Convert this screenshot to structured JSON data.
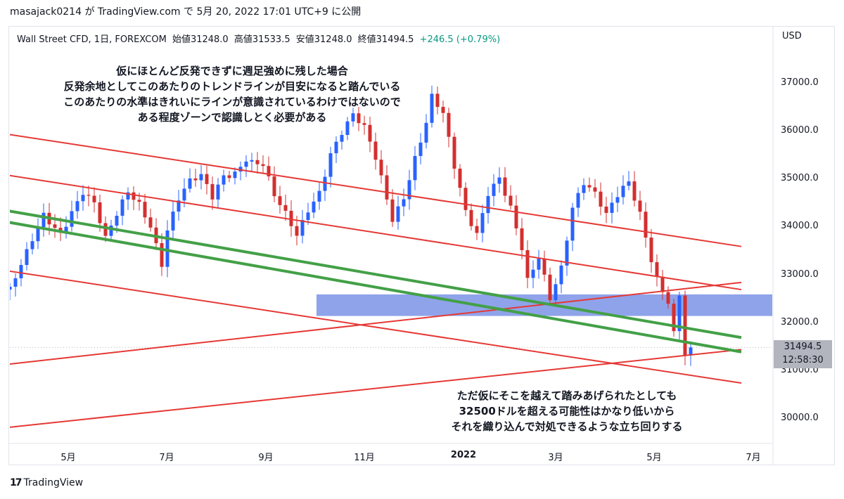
{
  "header": {
    "publish_text": "masajack0214 が TradingView.com で 5月 20, 2022 17:01 UTC+9 に公開"
  },
  "symbol": {
    "name": "Wall Street CFD, 1日, FOREXCOM",
    "open": "始値31248.0",
    "high": "高値31533.5",
    "low": "安値31248.0",
    "close": "終値31494.5",
    "change": "+246.5 (+0.79%)"
  },
  "price_axis": {
    "currency": "USD"
  },
  "last_price": {
    "price": "31494.5",
    "countdown": "12:58:30"
  },
  "annotations": {
    "top": [
      "仮にほとんど反発できずに週足強めに残した場合",
      "反発余地としてこのあたりのトレンドラインが目安になると踏んでいる",
      "このあたりの水準はきれいにラインが意識されているわけではないので",
      "ある程度ゾーンで認識しとく必要がある"
    ],
    "bottom": [
      "ただ仮にそこを越えて踏みあげられたとしても",
      "32500ドルを超える可能性はかなり低いから",
      "それを織り込んで対処できるような立ち回りする"
    ]
  },
  "branding": {
    "logo_text": "TradingView",
    "logo_mark": "17"
  },
  "colors": {
    "up": "#2962ff",
    "down": "#d32f2f",
    "trend_red": "#e53935",
    "trend_green": "#43a047",
    "zone": "#7b93e6"
  },
  "chart_data": {
    "type": "candlestick",
    "x_ticks": [
      "5月",
      "7月",
      "9月",
      "11月",
      "2022",
      "3月",
      "5月",
      "7月"
    ],
    "y_ticks": [
      37000.0,
      36000.0,
      35000.0,
      34000.0,
      33000.0,
      32000.0,
      31000.0,
      30000.0
    ],
    "y_tick_labels": [
      "37000.0",
      "36000.0",
      "35000.0",
      "34000.0",
      "33000.0",
      "32000.0",
      "31000.0",
      "30000.0"
    ],
    "ylim": [
      29600,
      38100
    ],
    "zone": {
      "from": 32150,
      "to": 32600
    },
    "close_path": [
      [
        0,
        32700
      ],
      [
        3,
        33400
      ],
      [
        6,
        34200
      ],
      [
        9,
        33900
      ],
      [
        11,
        34400
      ],
      [
        13,
        34800
      ],
      [
        15,
        34500
      ],
      [
        17,
        33700
      ],
      [
        19,
        34200
      ],
      [
        21,
        34700
      ],
      [
        23,
        34500
      ],
      [
        25,
        34100
      ],
      [
        27,
        33300
      ],
      [
        28,
        34000
      ],
      [
        30,
        34600
      ],
      [
        32,
        34900
      ],
      [
        34,
        35000
      ],
      [
        36,
        34600
      ],
      [
        38,
        35100
      ],
      [
        40,
        35200
      ],
      [
        42,
        35500
      ],
      [
        43,
        35400
      ],
      [
        45,
        35300
      ],
      [
        47,
        34600
      ],
      [
        49,
        34200
      ],
      [
        51,
        33800
      ],
      [
        53,
        34400
      ],
      [
        55,
        34800
      ],
      [
        57,
        35600
      ],
      [
        59,
        36000
      ],
      [
        61,
        36300
      ],
      [
        63,
        36000
      ],
      [
        65,
        35400
      ],
      [
        67,
        34600
      ],
      [
        68,
        34200
      ],
      [
        70,
        34700
      ],
      [
        72,
        35500
      ],
      [
        74,
        36200
      ],
      [
        75,
        36700
      ],
      [
        77,
        36300
      ],
      [
        79,
        35200
      ],
      [
        81,
        34300
      ],
      [
        83,
        33900
      ],
      [
        85,
        34800
      ],
      [
        87,
        35100
      ],
      [
        89,
        34400
      ],
      [
        91,
        33500
      ],
      [
        92,
        32800
      ],
      [
        94,
        33300
      ],
      [
        96,
        32500
      ],
      [
        98,
        33200
      ],
      [
        100,
        34500
      ],
      [
        102,
        35000
      ],
      [
        104,
        34700
      ],
      [
        106,
        34200
      ],
      [
        108,
        34600
      ],
      [
        110,
        34900
      ],
      [
        112,
        34300
      ],
      [
        114,
        33400
      ],
      [
        115,
        33000
      ],
      [
        117,
        32500
      ],
      [
        118,
        31800
      ],
      [
        119,
        32600
      ],
      [
        120,
        31300
      ],
      [
        121,
        31494.5
      ]
    ],
    "trend_lines": [
      {
        "color": "red",
        "from": [
          -12,
          36150
        ],
        "to": [
          130,
          33600
        ]
      },
      {
        "color": "red",
        "from": [
          -12,
          35300
        ],
        "to": [
          130,
          32700
        ]
      },
      {
        "color": "red",
        "from": [
          -12,
          33300
        ],
        "to": [
          130,
          30750
        ]
      },
      {
        "color": "red",
        "from": [
          -12,
          30990
        ],
        "to": [
          130,
          32850
        ]
      },
      {
        "color": "red",
        "from": [
          -12,
          29680
        ],
        "to": [
          130,
          31450
        ]
      },
      {
        "color": "green",
        "from": [
          -12,
          34580
        ],
        "to": [
          130,
          31700
        ]
      },
      {
        "color": "green",
        "from": [
          -12,
          34350
        ],
        "to": [
          130,
          31400
        ]
      }
    ]
  }
}
